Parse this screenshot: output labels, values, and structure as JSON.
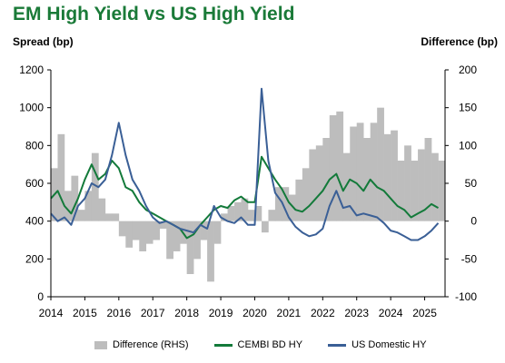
{
  "chart_data": {
    "type": "line",
    "title": "EM High Yield vs US High Yield",
    "ylabel_left": "Spread (bp)",
    "ylabel_right": "Difference (bp)",
    "y_left_lim": [
      0,
      1200
    ],
    "y_left_ticks": [
      "0",
      "200",
      "400",
      "600",
      "800",
      "1000",
      "1200"
    ],
    "y_right_lim": [
      -100,
      200
    ],
    "y_right_ticks": [
      "-100",
      "-50",
      "0",
      "50",
      "100",
      "150",
      "200"
    ],
    "x_lim": [
      2014,
      2025.6
    ],
    "x_ticks": [
      "2014",
      "2015",
      "2016",
      "2017",
      "2018",
      "2019",
      "2020",
      "2021",
      "2022",
      "2023",
      "2024",
      "2025"
    ],
    "grid": false,
    "legend": "bottom",
    "colors": {
      "difference": "#bdbdbd",
      "cembi": "#137a3a",
      "us": "#3a5f96"
    },
    "series": [
      {
        "name": "Difference (RHS)",
        "axis": "right",
        "kind": "area",
        "x": [
          2014.0,
          2014.2,
          2014.4,
          2014.6,
          2014.8,
          2015.0,
          2015.2,
          2015.4,
          2015.6,
          2015.8,
          2016.0,
          2016.2,
          2016.4,
          2016.6,
          2016.8,
          2017.0,
          2017.2,
          2017.4,
          2017.6,
          2017.8,
          2018.0,
          2018.2,
          2018.4,
          2018.6,
          2018.8,
          2019.0,
          2019.2,
          2019.4,
          2019.6,
          2019.8,
          2020.0,
          2020.2,
          2020.4,
          2020.6,
          2020.8,
          2021.0,
          2021.2,
          2021.4,
          2021.6,
          2021.8,
          2022.0,
          2022.2,
          2022.4,
          2022.6,
          2022.8,
          2023.0,
          2023.2,
          2023.4,
          2023.6,
          2023.8,
          2024.0,
          2024.2,
          2024.4,
          2024.6,
          2024.8,
          2025.0,
          2025.2,
          2025.4
        ],
        "values": [
          70,
          115,
          40,
          60,
          15,
          40,
          90,
          30,
          10,
          10,
          -20,
          -35,
          -25,
          -40,
          -30,
          -25,
          -10,
          -50,
          -40,
          -30,
          -70,
          -50,
          -25,
          -80,
          -30,
          10,
          20,
          25,
          30,
          15,
          20,
          -15,
          15,
          45,
          45,
          35,
          55,
          70,
          95,
          100,
          110,
          140,
          145,
          90,
          125,
          130,
          110,
          130,
          150,
          115,
          120,
          80,
          100,
          80,
          95,
          110,
          90,
          80
        ]
      },
      {
        "name": "CEMBI BD HY",
        "axis": "left",
        "kind": "line",
        "x": [
          2014.0,
          2014.2,
          2014.4,
          2014.6,
          2014.8,
          2015.0,
          2015.2,
          2015.4,
          2015.6,
          2015.8,
          2016.0,
          2016.2,
          2016.4,
          2016.6,
          2016.8,
          2017.0,
          2017.2,
          2017.4,
          2017.6,
          2017.8,
          2018.0,
          2018.2,
          2018.4,
          2018.6,
          2018.8,
          2019.0,
          2019.2,
          2019.4,
          2019.6,
          2019.8,
          2020.0,
          2020.2,
          2020.4,
          2020.6,
          2020.8,
          2021.0,
          2021.2,
          2021.4,
          2021.6,
          2021.8,
          2022.0,
          2022.2,
          2022.4,
          2022.6,
          2022.8,
          2023.0,
          2023.2,
          2023.4,
          2023.6,
          2023.8,
          2024.0,
          2024.2,
          2024.4,
          2024.6,
          2024.8,
          2025.0,
          2025.2,
          2025.4
        ],
        "values": [
          520,
          560,
          480,
          440,
          520,
          620,
          700,
          620,
          650,
          720,
          680,
          580,
          560,
          500,
          460,
          440,
          420,
          400,
          380,
          360,
          310,
          330,
          380,
          420,
          460,
          480,
          470,
          510,
          530,
          500,
          500,
          740,
          680,
          620,
          570,
          500,
          460,
          450,
          480,
          520,
          560,
          620,
          650,
          560,
          620,
          600,
          560,
          620,
          580,
          560,
          520,
          480,
          460,
          420,
          440,
          460,
          490,
          470
        ]
      },
      {
        "name": "US Domestic HY",
        "axis": "left",
        "kind": "line",
        "x": [
          2014.0,
          2014.2,
          2014.4,
          2014.6,
          2014.8,
          2015.0,
          2015.2,
          2015.4,
          2015.6,
          2015.8,
          2016.0,
          2016.2,
          2016.4,
          2016.6,
          2016.8,
          2017.0,
          2017.2,
          2017.4,
          2017.6,
          2017.8,
          2018.0,
          2018.2,
          2018.4,
          2018.6,
          2018.8,
          2019.0,
          2019.2,
          2019.4,
          2019.6,
          2019.8,
          2020.0,
          2020.2,
          2020.4,
          2020.6,
          2020.8,
          2021.0,
          2021.2,
          2021.4,
          2021.6,
          2021.8,
          2022.0,
          2022.2,
          2022.4,
          2022.6,
          2022.8,
          2023.0,
          2023.2,
          2023.4,
          2023.6,
          2023.8,
          2024.0,
          2024.2,
          2024.4,
          2024.6,
          2024.8,
          2025.0,
          2025.2,
          2025.4
        ],
        "values": [
          440,
          400,
          420,
          380,
          480,
          520,
          600,
          580,
          620,
          750,
          920,
          750,
          620,
          560,
          480,
          420,
          390,
          400,
          380,
          360,
          350,
          340,
          380,
          360,
          480,
          420,
          400,
          390,
          420,
          380,
          380,
          1100,
          720,
          550,
          500,
          420,
          370,
          340,
          320,
          330,
          360,
          480,
          560,
          470,
          480,
          430,
          440,
          430,
          420,
          390,
          350,
          340,
          320,
          300,
          300,
          320,
          350,
          390
        ]
      }
    ]
  }
}
